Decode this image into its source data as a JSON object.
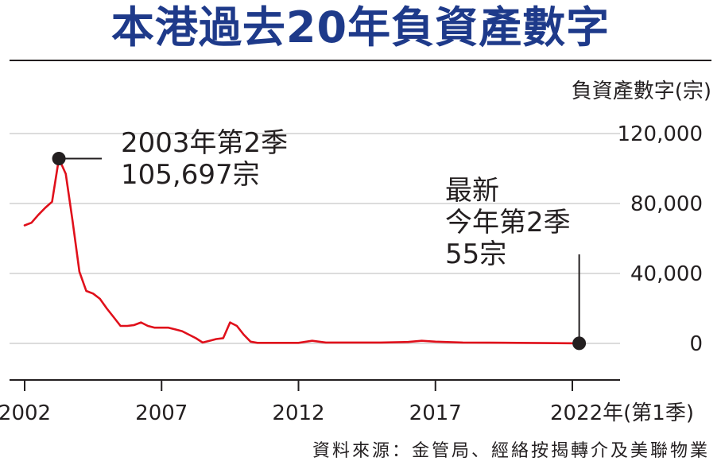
{
  "chart_data": {
    "type": "line",
    "title": "本港過去20年負資產數字",
    "ylabel": "負資產數字(宗)",
    "xlabel": "",
    "x_unit_suffix": "年(第1季)",
    "ylim": [
      0,
      120000
    ],
    "xlim": [
      2002,
      2022.6
    ],
    "y_ticks": [
      0,
      40000,
      80000,
      120000
    ],
    "y_tick_labels": [
      "0",
      "40,000",
      "80,000",
      "120,000"
    ],
    "x_ticks": [
      2002,
      2007,
      2012,
      2017,
      2022
    ],
    "x_tick_labels": [
      "2002",
      "2007",
      "2012",
      "2017",
      "2022年(第1季)"
    ],
    "grid": true,
    "line_color": "#e0101b",
    "series": [
      {
        "name": "",
        "points": [
          [
            2002.0,
            67500
          ],
          [
            2002.25,
            69000
          ],
          [
            2002.5,
            73500
          ],
          [
            2002.75,
            77500
          ],
          [
            2003.0,
            81000
          ],
          [
            2003.25,
            105697
          ],
          [
            2003.5,
            97000
          ],
          [
            2003.75,
            70000
          ],
          [
            2004.0,
            41000
          ],
          [
            2004.25,
            30000
          ],
          [
            2004.5,
            28500
          ],
          [
            2004.75,
            25500
          ],
          [
            2005.0,
            20000
          ],
          [
            2005.25,
            15000
          ],
          [
            2005.5,
            10000
          ],
          [
            2005.75,
            10000
          ],
          [
            2006.0,
            10500
          ],
          [
            2006.25,
            12000
          ],
          [
            2006.5,
            10000
          ],
          [
            2006.75,
            9000
          ],
          [
            2007.0,
            9000
          ],
          [
            2007.25,
            9000
          ],
          [
            2007.5,
            8000
          ],
          [
            2007.75,
            7000
          ],
          [
            2008.0,
            5000
          ],
          [
            2008.25,
            3000
          ],
          [
            2008.5,
            500
          ],
          [
            2008.75,
            1500
          ],
          [
            2009.0,
            2500
          ],
          [
            2009.25,
            3000
          ],
          [
            2009.5,
            12000
          ],
          [
            2009.75,
            10000
          ],
          [
            2010.0,
            5000
          ],
          [
            2010.25,
            1000
          ],
          [
            2010.5,
            300
          ],
          [
            2011.0,
            300
          ],
          [
            2011.5,
            300
          ],
          [
            2012.0,
            300
          ],
          [
            2012.5,
            1500
          ],
          [
            2013.0,
            500
          ],
          [
            2014.0,
            500
          ],
          [
            2015.0,
            500
          ],
          [
            2016.0,
            800
          ],
          [
            2016.5,
            1500
          ],
          [
            2017.0,
            1000
          ],
          [
            2018.0,
            500
          ],
          [
            2019.0,
            400
          ],
          [
            2020.0,
            300
          ],
          [
            2021.0,
            200
          ],
          [
            2022.25,
            55
          ]
        ]
      }
    ],
    "annotations": [
      {
        "x": 2003.25,
        "y": 105697,
        "lines": [
          "2003年第2季",
          "105,697宗"
        ]
      },
      {
        "x": 2022.25,
        "y": 55,
        "lines": [
          "最新",
          "今年第2季",
          "55宗"
        ]
      }
    ],
    "source": "資料來源：金管局、經絡按揭轉介及美聯物業"
  }
}
